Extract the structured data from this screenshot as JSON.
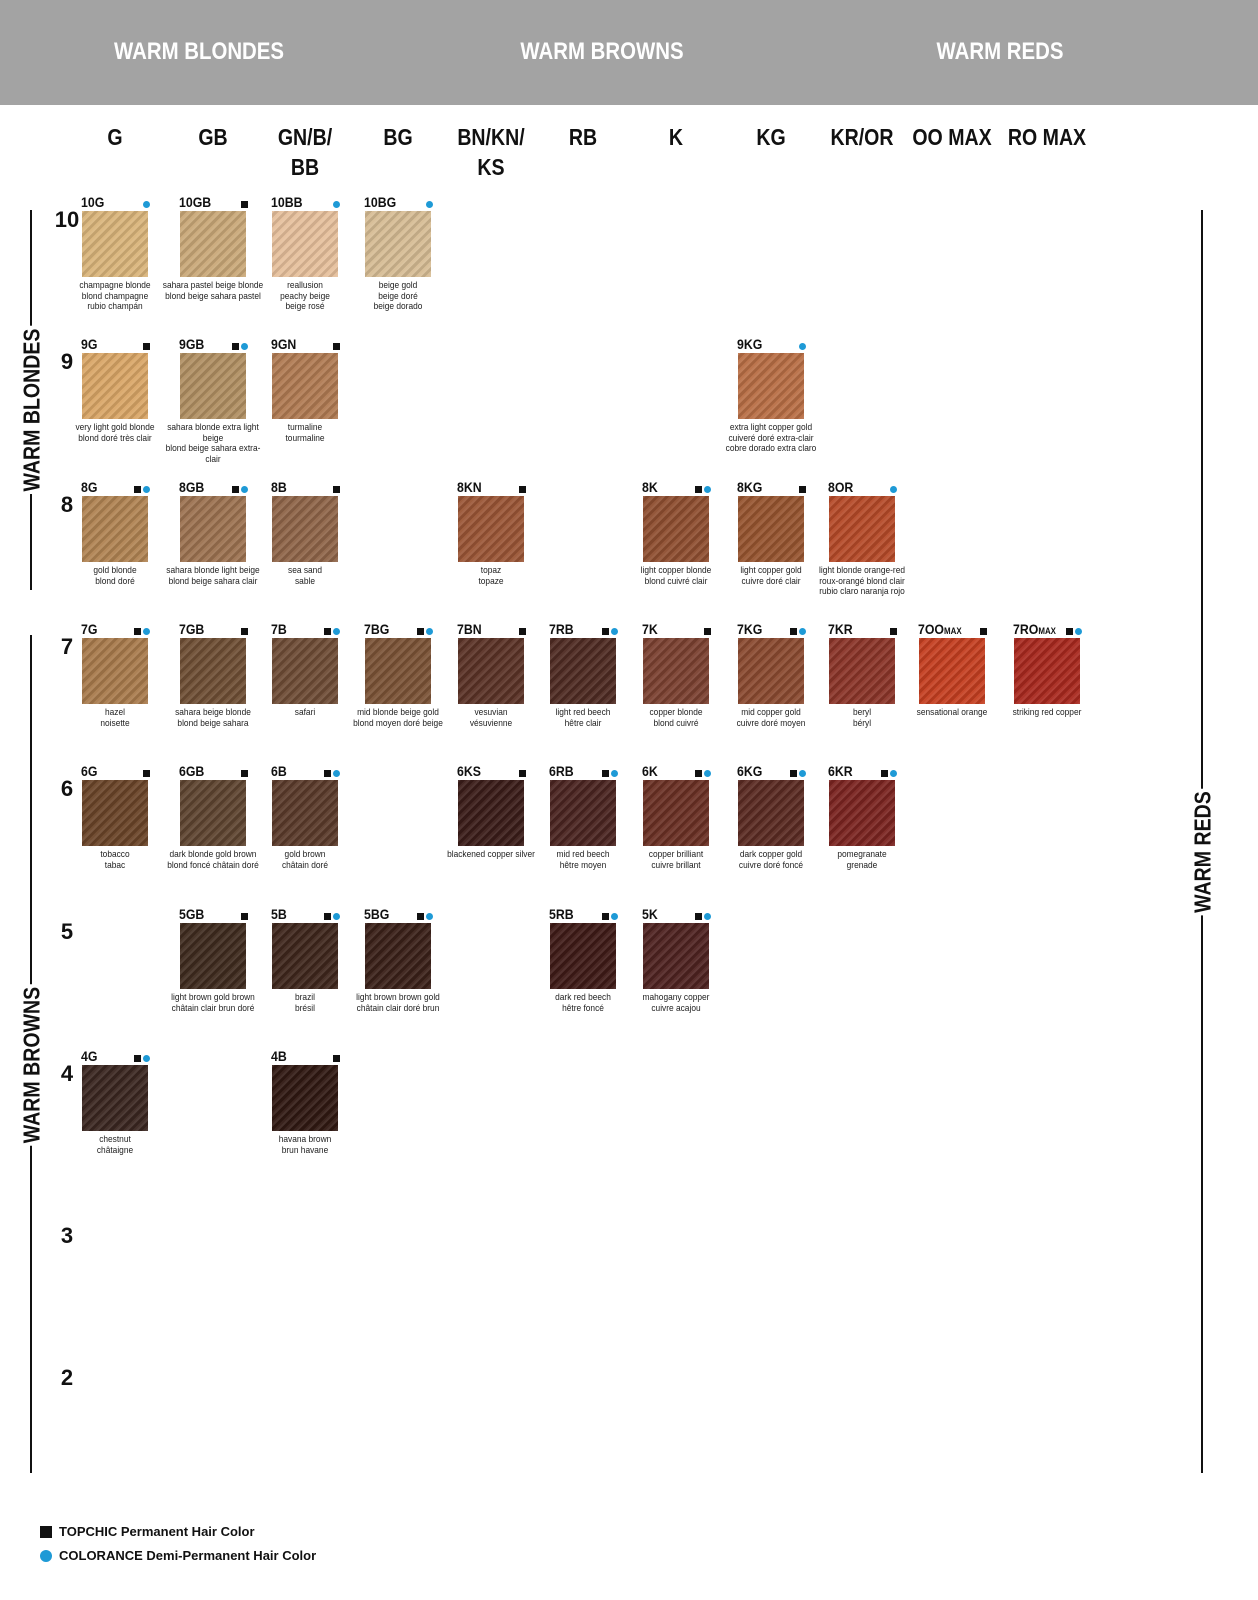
{
  "families": [
    "WARM BLONDES",
    "WARM BROWNS",
    "WARM REDS"
  ],
  "columns": [
    "G",
    "GB",
    "GN/B/ BB",
    "BG",
    "BN/KN/ KS",
    "RB",
    "K",
    "KG",
    "KR/OR",
    "OO MAX",
    "RO MAX"
  ],
  "rows": [
    "10",
    "9",
    "8",
    "7",
    "6",
    "5",
    "4",
    "3",
    "2"
  ],
  "side_labels": {
    "left_top": "WARM BLONDES",
    "left_bottom": "WARM BROWNS",
    "right": "WARM REDS"
  },
  "colors": {
    "header_band": "#a3a3a3",
    "colorance_dot": "#1e9ad6",
    "topchic_square": "#111111"
  },
  "swatches": [
    {
      "code": "10G",
      "row": 0,
      "col": 0,
      "topchic": false,
      "colorance": true,
      "names": [
        "champagne blonde",
        "blond champagne",
        "rubio champán"
      ],
      "color": "#d9b47a"
    },
    {
      "code": "10GB",
      "row": 0,
      "col": 1,
      "topchic": true,
      "colorance": false,
      "names": [
        "sahara pastel beige blonde",
        "blond beige sahara pastel"
      ],
      "color": "#c9a878"
    },
    {
      "code": "10BB",
      "row": 0,
      "col": 2,
      "topchic": false,
      "colorance": true,
      "names": [
        "reallusion",
        "peachy beige",
        "beige rosé"
      ],
      "color": "#e6c09c"
    },
    {
      "code": "10BG",
      "row": 0,
      "col": 3,
      "topchic": false,
      "colorance": true,
      "names": [
        "beige gold",
        "beige doré",
        "beige dorado"
      ],
      "color": "#d6bc94"
    },
    {
      "code": "9G",
      "row": 1,
      "col": 0,
      "topchic": true,
      "colorance": false,
      "names": [
        "very light gold blonde",
        "blond doré très clair"
      ],
      "color": "#d9a667"
    },
    {
      "code": "9GB",
      "row": 1,
      "col": 1,
      "topchic": true,
      "colorance": true,
      "names": [
        "sahara blonde extra light beige",
        "blond beige sahara extra-clair"
      ],
      "color": "#b08f62"
    },
    {
      "code": "9GN",
      "row": 1,
      "col": 2,
      "topchic": true,
      "colorance": false,
      "names": [
        "turmaline",
        "tourmaline"
      ],
      "color": "#b07a52"
    },
    {
      "code": "9KG",
      "row": 1,
      "col": 7,
      "topchic": false,
      "colorance": true,
      "names": [
        "extra light copper gold",
        "cuiveré doré extra-clair",
        "cobre dorado extra claro"
      ],
      "color": "#b86e45"
    },
    {
      "code": "8G",
      "row": 2,
      "col": 0,
      "topchic": true,
      "colorance": true,
      "names": [
        "gold blonde",
        "blond doré"
      ],
      "color": "#b08352"
    },
    {
      "code": "8GB",
      "row": 2,
      "col": 1,
      "topchic": true,
      "colorance": true,
      "names": [
        "sahara blonde light beige",
        "blond beige sahara clair"
      ],
      "color": "#9c7250"
    },
    {
      "code": "8B",
      "row": 2,
      "col": 2,
      "topchic": true,
      "colorance": false,
      "names": [
        "sea sand",
        "sable"
      ],
      "color": "#8e6448"
    },
    {
      "code": "8KN",
      "row": 2,
      "col": 4,
      "topchic": true,
      "colorance": false,
      "names": [
        "topaz",
        "topaze"
      ],
      "color": "#9a5535"
    },
    {
      "code": "8K",
      "row": 2,
      "col": 6,
      "topchic": true,
      "colorance": true,
      "names": [
        "light copper blonde",
        "blond cuivré clair"
      ],
      "color": "#8e4e30"
    },
    {
      "code": "8KG",
      "row": 2,
      "col": 7,
      "topchic": true,
      "colorance": false,
      "names": [
        "light copper gold",
        "cuivre doré clair"
      ],
      "color": "#96542f"
    },
    {
      "code": "8OR",
      "row": 2,
      "col": 8,
      "topchic": false,
      "colorance": true,
      "names": [
        "light blonde orange-red",
        "roux-orangé blond clair",
        "rubio claro naranja rojo"
      ],
      "color": "#b54a28"
    },
    {
      "code": "7G",
      "row": 3,
      "col": 0,
      "topchic": true,
      "colorance": true,
      "names": [
        "hazel",
        "noisette"
      ],
      "color": "#a87a4c"
    },
    {
      "code": "7GB",
      "row": 3,
      "col": 1,
      "topchic": true,
      "colorance": false,
      "names": [
        "sahara beige blonde",
        "blond beige sahara"
      ],
      "color": "#6e4e34"
    },
    {
      "code": "7B",
      "row": 3,
      "col": 2,
      "topchic": true,
      "colorance": true,
      "names": [
        "safari"
      ],
      "color": "#6e4c36"
    },
    {
      "code": "7BG",
      "row": 3,
      "col": 3,
      "topchic": true,
      "colorance": true,
      "names": [
        "mid blonde beige gold",
        "blond moyen doré beige"
      ],
      "color": "#7a5236"
    },
    {
      "code": "7BN",
      "row": 3,
      "col": 4,
      "topchic": true,
      "colorance": false,
      "names": [
        "vesuvian",
        "vésuvienne"
      ],
      "color": "#5a3226"
    },
    {
      "code": "7RB",
      "row": 3,
      "col": 5,
      "topchic": true,
      "colorance": true,
      "names": [
        "light red beech",
        "hêtre clair"
      ],
      "color": "#4e2a22"
    },
    {
      "code": "7K",
      "row": 3,
      "col": 6,
      "topchic": true,
      "colorance": false,
      "names": [
        "copper blonde",
        "blond cuivré"
      ],
      "color": "#7a4030"
    },
    {
      "code": "7KG",
      "row": 3,
      "col": 7,
      "topchic": true,
      "colorance": true,
      "names": [
        "mid copper gold",
        "cuivre doré moyen"
      ],
      "color": "#8a4a30"
    },
    {
      "code": "7KR",
      "row": 3,
      "col": 8,
      "topchic": true,
      "colorance": false,
      "names": [
        "beryl",
        "béryl"
      ],
      "color": "#8a3428"
    },
    {
      "code": "7OO",
      "suffix": "MAX",
      "row": 3,
      "col": 9,
      "topchic": true,
      "colorance": false,
      "names": [
        "sensational orange"
      ],
      "color": "#c43e20"
    },
    {
      "code": "7RO",
      "suffix": "MAX",
      "row": 3,
      "col": 10,
      "topchic": true,
      "colorance": true,
      "names": [
        "striking red copper"
      ],
      "color": "#a8281e"
    },
    {
      "code": "6G",
      "row": 4,
      "col": 0,
      "topchic": true,
      "colorance": false,
      "names": [
        "tobacco",
        "tabac"
      ],
      "color": "#6a4428"
    },
    {
      "code": "6GB",
      "row": 4,
      "col": 1,
      "topchic": true,
      "colorance": false,
      "names": [
        "dark blonde gold brown",
        "blond foncé châtain doré"
      ],
      "color": "#5e4430"
    },
    {
      "code": "6B",
      "row": 4,
      "col": 2,
      "topchic": true,
      "colorance": true,
      "names": [
        "gold brown",
        "châtain doré"
      ],
      "color": "#5a3a2a"
    },
    {
      "code": "6KS",
      "row": 4,
      "col": 4,
      "topchic": true,
      "colorance": false,
      "names": [
        "blackened copper silver"
      ],
      "color": "#3a1c18"
    },
    {
      "code": "6RB",
      "row": 4,
      "col": 5,
      "topchic": true,
      "colorance": true,
      "names": [
        "mid red beech",
        "hêtre moyen"
      ],
      "color": "#4a2420"
    },
    {
      "code": "6K",
      "row": 4,
      "col": 6,
      "topchic": true,
      "colorance": true,
      "names": [
        "copper brilliant",
        "cuivre brillant"
      ],
      "color": "#6a3024"
    },
    {
      "code": "6KG",
      "row": 4,
      "col": 7,
      "topchic": true,
      "colorance": true,
      "names": [
        "dark copper gold",
        "cuivre doré foncé"
      ],
      "color": "#5a2a22"
    },
    {
      "code": "6KR",
      "row": 4,
      "col": 8,
      "topchic": true,
      "colorance": true,
      "names": [
        "pomegranate",
        "grenade"
      ],
      "color": "#7a2420"
    },
    {
      "code": "5GB",
      "row": 5,
      "col": 1,
      "topchic": true,
      "colorance": false,
      "names": [
        "light brown gold brown",
        "châtain clair brun doré"
      ],
      "color": "#3e2a1e"
    },
    {
      "code": "5B",
      "row": 5,
      "col": 2,
      "topchic": true,
      "colorance": true,
      "names": [
        "brazil",
        "brésil"
      ],
      "color": "#3e261c"
    },
    {
      "code": "5BG",
      "row": 5,
      "col": 3,
      "topchic": true,
      "colorance": true,
      "names": [
        "light brown brown gold",
        "châtain clair doré brun"
      ],
      "color": "#3a2018"
    },
    {
      "code": "5RB",
      "row": 5,
      "col": 5,
      "topchic": true,
      "colorance": true,
      "names": [
        "dark red beech",
        "hêtre foncé"
      ],
      "color": "#3e1a16"
    },
    {
      "code": "5K",
      "row": 5,
      "col": 6,
      "topchic": true,
      "colorance": true,
      "names": [
        "mahogany copper",
        "cuivre acajou"
      ],
      "color": "#4e2220"
    },
    {
      "code": "4G",
      "row": 6,
      "col": 0,
      "topchic": true,
      "colorance": true,
      "names": [
        "chestnut",
        "châtaigne"
      ],
      "color": "#3a2620"
    },
    {
      "code": "4B",
      "row": 6,
      "col": 2,
      "topchic": true,
      "colorance": false,
      "names": [
        "havana brown",
        "brun havane"
      ],
      "color": "#301812"
    }
  ],
  "legend": {
    "topchic": "TOPCHIC Permanent Hair Color",
    "colorance": "COLORANCE Demi-Permanent Hair Color"
  }
}
